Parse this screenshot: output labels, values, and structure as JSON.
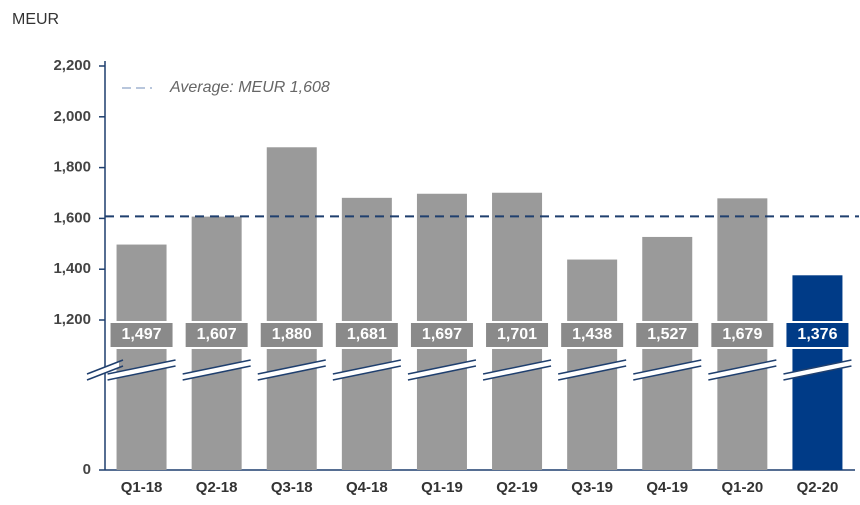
{
  "chart_data": {
    "type": "bar",
    "y_label": "MEUR",
    "categories": [
      "Q1-18",
      "Q2-18",
      "Q3-18",
      "Q4-18",
      "Q1-19",
      "Q2-19",
      "Q3-19",
      "Q4-19",
      "Q1-20",
      "Q2-20"
    ],
    "values": [
      1497,
      1607,
      1880,
      1681,
      1697,
      1701,
      1438,
      1527,
      1679,
      1376
    ],
    "value_labels": [
      "1,497",
      "1,607",
      "1,880",
      "1,681",
      "1,697",
      "1,701",
      "1,438",
      "1,527",
      "1,679",
      "1,376"
    ],
    "colors": [
      "#9a9a9a",
      "#9a9a9a",
      "#9a9a9a",
      "#9a9a9a",
      "#9a9a9a",
      "#9a9a9a",
      "#9a9a9a",
      "#9a9a9a",
      "#9a9a9a",
      "#003b87"
    ],
    "ylim": [
      0,
      2200
    ],
    "yticks": [
      0,
      {
        "value": 1200,
        "label": "1,200"
      },
      {
        "value": 1400,
        "label": "1,400"
      },
      {
        "value": 1600,
        "label": "1,600"
      },
      {
        "value": 1800,
        "label": "1,800"
      },
      {
        "value": 2000,
        "label": "2,000"
      },
      {
        "value": 2200,
        "label": "2,200"
      }
    ],
    "axis_break": true,
    "average": 1608,
    "average_label": "Average: MEUR 1,608",
    "average_color": "#1f3f6e"
  }
}
